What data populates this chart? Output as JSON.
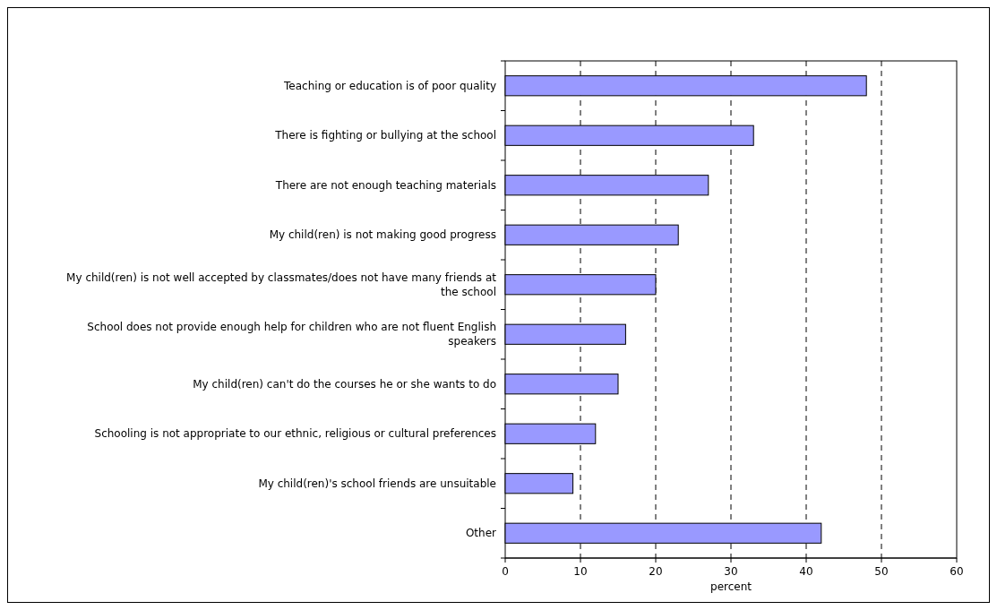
{
  "chart_data": {
    "type": "bar",
    "orientation": "horizontal",
    "xlabel": "percent",
    "categories": [
      "Teaching or education is of poor quality",
      "There is fighting or bullying at the school",
      "There are not enough teaching materials",
      "My child(ren) is not making good progress",
      "My child(ren) is not well accepted by classmates/does not have many friends at the school",
      "School does not provide enough help for children who are not fluent English speakers",
      "My child(ren) can't do the courses he or she wants to do",
      "Schooling is not appropriate to our ethnic, religious or cultural preferences",
      "My child(ren)'s school friends are unsuitable",
      "Other"
    ],
    "values": [
      48,
      33,
      27,
      23,
      20,
      16,
      15,
      12,
      9,
      42
    ],
    "color": "#9999ff",
    "xlim": [
      0,
      60
    ],
    "xticks": [
      0,
      10,
      20,
      30,
      40,
      50,
      60
    ],
    "grid": "x",
    "line_style": "dashed"
  }
}
